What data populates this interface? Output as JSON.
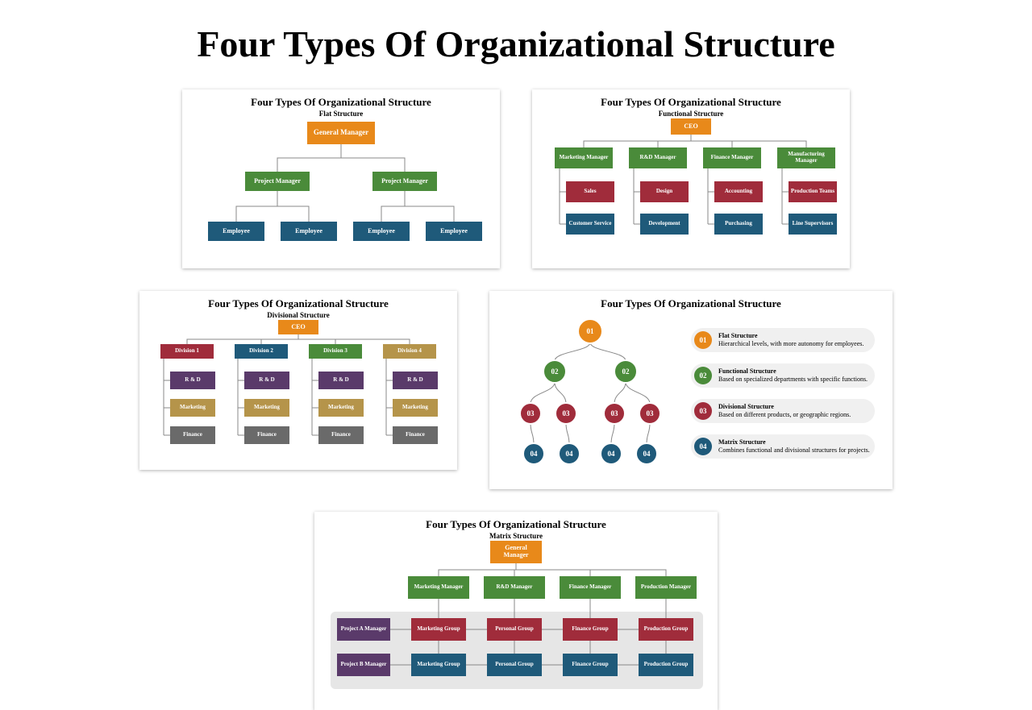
{
  "page_title": "Four Types Of Organizational Structure",
  "colors": {
    "orange": "#e8891a",
    "green": "#4a8b3a",
    "blue": "#1f5a7a",
    "red": "#a02c3b",
    "purple": "#5a3a6a",
    "gold": "#b5944a",
    "gray": "#6a6a6a",
    "line": "#888888"
  },
  "cards": {
    "flat": {
      "title": "Four Types Of Organizational Structure",
      "subtitle": "Flat Structure",
      "root": "General Manager",
      "level2": [
        "Project Manager",
        "Project Manager"
      ],
      "level3": [
        "Employee",
        "Employee",
        "Employee",
        "Employee"
      ]
    },
    "functional": {
      "title": "Four Types Of Organizational Structure",
      "subtitle": "Functional Structure",
      "root": "CEO",
      "managers": [
        "Marketing Manager",
        "R&D Manager",
        "Finance Manager",
        "Manufacturing Manager"
      ],
      "col1": [
        "Sales",
        "Customer Service"
      ],
      "col2": [
        "Design",
        "Development"
      ],
      "col3": [
        "Accounting",
        "Purchasing"
      ],
      "col4": [
        "Production Teams",
        "Line Supervisors"
      ],
      "row_colors": [
        "#a02c3b",
        "#1f5a7a"
      ]
    },
    "divisional": {
      "title": "Four Types Of Organizational Structure",
      "subtitle": "Divisional Structure",
      "root": "CEO",
      "divisions": [
        "Division 1",
        "Division 2",
        "Division 3",
        "Division 4"
      ],
      "division_colors": [
        "#a02c3b",
        "#1f5a7a",
        "#4a8b3a",
        "#b5944a"
      ],
      "depts": [
        "R & D",
        "Marketing",
        "Finance"
      ],
      "dept_colors": [
        "#5a3a6a",
        "#b5944a",
        "#6a6a6a"
      ]
    },
    "overview": {
      "title": "Four Types Of Organizational Structure",
      "tree": {
        "l1": "01",
        "l2": [
          "02",
          "02"
        ],
        "l3": [
          "03",
          "03",
          "03",
          "03"
        ],
        "l4": [
          "04",
          "04",
          "04",
          "04"
        ]
      },
      "tree_colors": {
        "l1": "#e8891a",
        "l2": "#4a8b3a",
        "l3": "#a02c3b",
        "l4": "#1f5a7a"
      },
      "legend": [
        {
          "num": "01",
          "color": "#e8891a",
          "title": "Flat Structure",
          "desc": "Hierarchical levels, with more autonomy for employees."
        },
        {
          "num": "02",
          "color": "#4a8b3a",
          "title": "Functional Structure",
          "desc": "Based on specialized departments with specific functions."
        },
        {
          "num": "03",
          "color": "#a02c3b",
          "title": "Divisional Structure",
          "desc": "Based on different products, or geographic regions."
        },
        {
          "num": "04",
          "color": "#1f5a7a",
          "title": "Matrix Structure",
          "desc": "Combines functional and divisional structures for projects."
        }
      ]
    },
    "matrix": {
      "title": "Four Types Of Organizational Structure",
      "subtitle": "Matrix Structure",
      "root": "General Manager",
      "managers": [
        "Marketing Manager",
        "R&D Manager",
        "Finance Manager",
        "Production Manager"
      ],
      "projects": [
        "Project A Manager",
        "Project B Manager"
      ],
      "cells": {
        "rowA": [
          "Marketing Group",
          "Personal Group",
          "Finance Group",
          "Production Group"
        ],
        "rowB": [
          "Marketing Group",
          "Personal Group",
          "Finance Group",
          "Production Group"
        ]
      },
      "row_colors": [
        "#a02c3b",
        "#1f5a7a"
      ]
    }
  }
}
